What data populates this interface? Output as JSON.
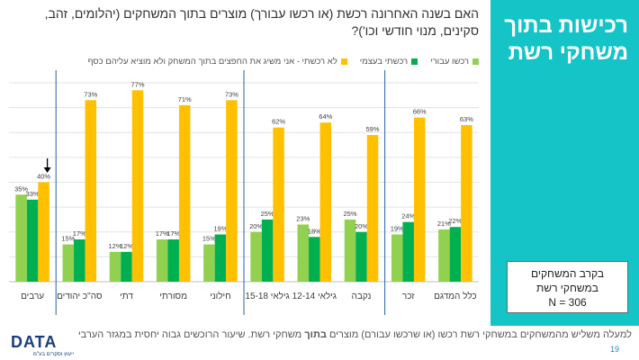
{
  "slide": {
    "title_line1": "רכישות בתוך",
    "title_line2": "משחקי רשת",
    "question": "האם בשנה האחרונה רכשת (או רכשו עבורך) מוצרים בתוך המשחקים (יהלומים, זהב, סקינים, מנוי חודשי וכו')?",
    "note_line1": "בקרב המשחקים",
    "note_line2": "במשחקי רשת",
    "note_line3": "N = 306",
    "footnote_pre": "למעלה משליש מהמשחקים במשחקי רשת רכשו (או שרכשו עבורם) מוצרים ",
    "footnote_bold": "בתוך",
    "footnote_post": " משחקי רשת. שיעור הרוכשים גבוה יחסית במגזר הערבי",
    "page_number": "19",
    "logo_text": "DATA",
    "logo_sub": "ייעוץ וסקרים בע\"מ"
  },
  "colors": {
    "light_green": "#92d050",
    "dark_green": "#00b050",
    "gold": "#ffc000",
    "panel": "#15c4c7",
    "divider": "#2e5fa3"
  },
  "chart_data": {
    "type": "bar",
    "categories": [
      "כלל המדגם",
      "זכר",
      "נקבה",
      "גילאי 12-14",
      "גילאי 15-18",
      "חילוני",
      "מסורתי",
      "דתי",
      "סה\"כ יהודים",
      "ערבים"
    ],
    "series": [
      {
        "name": "רכשו עבורי",
        "color": "#92d050",
        "values": [
          21,
          19,
          25,
          23,
          20,
          15,
          17,
          12,
          15,
          35
        ]
      },
      {
        "name": "רכשתי בעצמי",
        "color": "#00b050",
        "values": [
          22,
          24,
          20,
          18,
          25,
          19,
          17,
          12,
          17,
          33
        ]
      },
      {
        "name": "לא רכשתי - אני משיג את החפצים בתוך המשחק ולא מוציא עליהם כסף",
        "color": "#ffc000",
        "values": [
          63,
          66,
          59,
          64,
          62,
          73,
          71,
          77,
          73,
          40
        ]
      }
    ],
    "unit": "%",
    "ylim": [
      0,
      80
    ],
    "grid": true,
    "legend_position": "top",
    "highlight_arrow_category": "ערבים"
  }
}
